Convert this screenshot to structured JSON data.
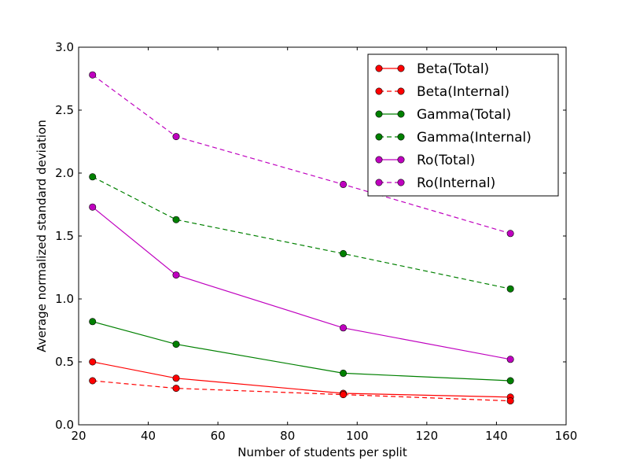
{
  "chart_data": {
    "type": "line",
    "title": "",
    "xlabel": "Number of students per split",
    "ylabel": "Average normalized standard deviation",
    "xlim": [
      20,
      160
    ],
    "ylim": [
      0.0,
      3.0
    ],
    "xticks": [
      "20",
      "40",
      "60",
      "80",
      "100",
      "120",
      "140",
      "160"
    ],
    "yticks": [
      "0.0",
      "0.5",
      "1.0",
      "1.5",
      "2.0",
      "2.5",
      "3.0"
    ],
    "grid": false,
    "legend_position": "top-right",
    "x": [
      24,
      48,
      96,
      144
    ],
    "series": [
      {
        "name": "Beta(Total)",
        "color": "#ff0000",
        "dashed": false,
        "values": [
          0.5,
          0.37,
          0.25,
          0.22
        ]
      },
      {
        "name": "Beta(Internal)",
        "color": "#ff0000",
        "dashed": true,
        "values": [
          0.35,
          0.29,
          0.24,
          0.19
        ]
      },
      {
        "name": "Gamma(Total)",
        "color": "#008000",
        "dashed": false,
        "values": [
          0.82,
          0.64,
          0.41,
          0.35
        ]
      },
      {
        "name": "Gamma(Internal)",
        "color": "#008000",
        "dashed": true,
        "values": [
          1.97,
          1.63,
          1.36,
          1.08
        ]
      },
      {
        "name": "Ro(Total)",
        "color": "#bf00bf",
        "dashed": false,
        "values": [
          1.73,
          1.19,
          0.77,
          0.52
        ]
      },
      {
        "name": "Ro(Internal)",
        "color": "#bf00bf",
        "dashed": true,
        "values": [
          2.78,
          2.29,
          1.91,
          1.52
        ]
      }
    ]
  }
}
